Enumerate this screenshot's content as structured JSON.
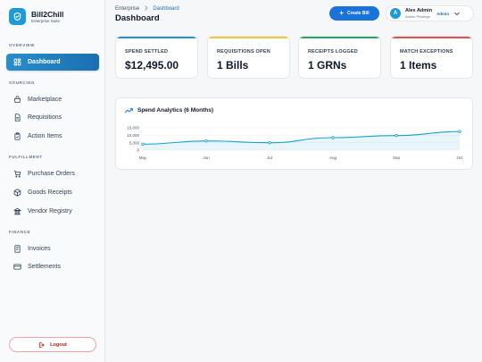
{
  "brand": {
    "name": "Bill2Chill",
    "subtitle": "Enterprise Suite",
    "accent": "#1d9bd6"
  },
  "sidebar": {
    "sections": [
      {
        "label": "OVERVIEW",
        "items": [
          {
            "label": "Dashboard",
            "icon": "grid-icon",
            "active": true
          }
        ]
      },
      {
        "label": "SOURCING",
        "items": [
          {
            "label": "Marketplace",
            "icon": "store-icon"
          },
          {
            "label": "Requisitions",
            "icon": "document-icon"
          },
          {
            "label": "Action Items",
            "icon": "clipboard-check-icon"
          }
        ]
      },
      {
        "label": "FULFILLMENT",
        "items": [
          {
            "label": "Purchase Orders",
            "icon": "cart-icon"
          },
          {
            "label": "Goods Receipts",
            "icon": "box-icon"
          },
          {
            "label": "Vendor Registry",
            "icon": "building-icon"
          }
        ]
      },
      {
        "label": "FINANCE",
        "items": [
          {
            "label": "Invoices",
            "icon": "receipt-icon"
          },
          {
            "label": "Settlements",
            "icon": "card-icon"
          }
        ]
      }
    ],
    "logout_label": "Logout"
  },
  "header": {
    "breadcrumb_root": "Enterprise",
    "breadcrumb_current": "Dashboard",
    "title": "Dashboard",
    "create_label": "Create Bill",
    "user": {
      "initial": "A",
      "name": "Alex Admin",
      "role": "Admin Privilege",
      "badge": "Admin"
    }
  },
  "kpis": [
    {
      "label": "SPEND SETTLED",
      "value": "$12,495.00",
      "color": "#2b8fd0"
    },
    {
      "label": "REQUISITIONS OPEN",
      "value": "1 Bills",
      "color": "#f2c43a"
    },
    {
      "label": "RECEIPTS LOGGED",
      "value": "1 GRNs",
      "color": "#27a564"
    },
    {
      "label": "MATCH EXCEPTIONS",
      "value": "1 Items",
      "color": "#e05252"
    }
  ],
  "analytics": {
    "title": "Spend Analytics (6 Months)",
    "chart_data": {
      "type": "area",
      "categories": [
        "May",
        "Jun",
        "Jul",
        "Aug",
        "Sep",
        "Oct"
      ],
      "values": [
        4000,
        6200,
        5000,
        8400,
        9800,
        12500
      ],
      "yticks": [
        "15,000",
        "10,000",
        "5,000",
        "0"
      ],
      "ylim": [
        0,
        15000
      ],
      "color": "#1aa3c9"
    }
  }
}
